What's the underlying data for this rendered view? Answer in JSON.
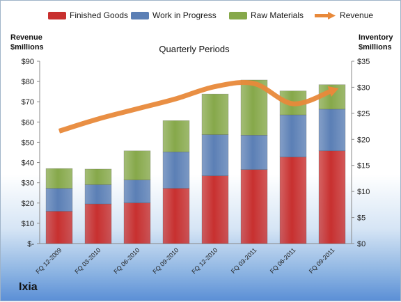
{
  "chart_data": {
    "type": "bar",
    "stacked": true,
    "title": "Quarterly Periods",
    "brand": "Ixia",
    "categories": [
      "FQ 12-2009",
      "FQ 03-2010",
      "FQ 06-2010",
      "FQ 09-2010",
      "FQ 12-2010",
      "FQ 03-2011",
      "FQ 06-2011",
      "FQ 09-2011"
    ],
    "series": [
      {
        "name": "Finished Goods",
        "axis": "right",
        "color": "#c8302f",
        "values": [
          6.2,
          7.6,
          7.8,
          10.6,
          13.0,
          14.2,
          16.6,
          17.8
        ]
      },
      {
        "name": "Work in Progress",
        "axis": "right",
        "color": "#5b7fb5",
        "values": [
          4.4,
          3.7,
          4.4,
          7.0,
          7.9,
          6.6,
          8.1,
          8.0
        ]
      },
      {
        "name": "Raw Materials",
        "axis": "right",
        "color": "#86a84a",
        "values": [
          3.8,
          3.0,
          5.6,
          6.0,
          7.8,
          10.6,
          4.6,
          4.7
        ]
      }
    ],
    "line": {
      "name": "Revenue",
      "axis": "left",
      "color": "#e8893a",
      "values": [
        55.5,
        61.5,
        66.5,
        71.5,
        77.5,
        79.0,
        69.0,
        75.5
      ]
    },
    "left_axis": {
      "label_line1": "Revenue",
      "label_line2": "$millions",
      "ticks": [
        "$-",
        "$10",
        "$20",
        "$30",
        "$40",
        "$50",
        "$60",
        "$70",
        "$80",
        "$90"
      ],
      "range": [
        0,
        90
      ]
    },
    "right_axis": {
      "label_line1": "Inventory",
      "label_line2": "$millions",
      "ticks": [
        "$0",
        "$5",
        "$10",
        "$15",
        "$20",
        "$25",
        "$30",
        "$35"
      ],
      "range": [
        0,
        35
      ]
    },
    "grid": false,
    "legend_position": "top"
  }
}
